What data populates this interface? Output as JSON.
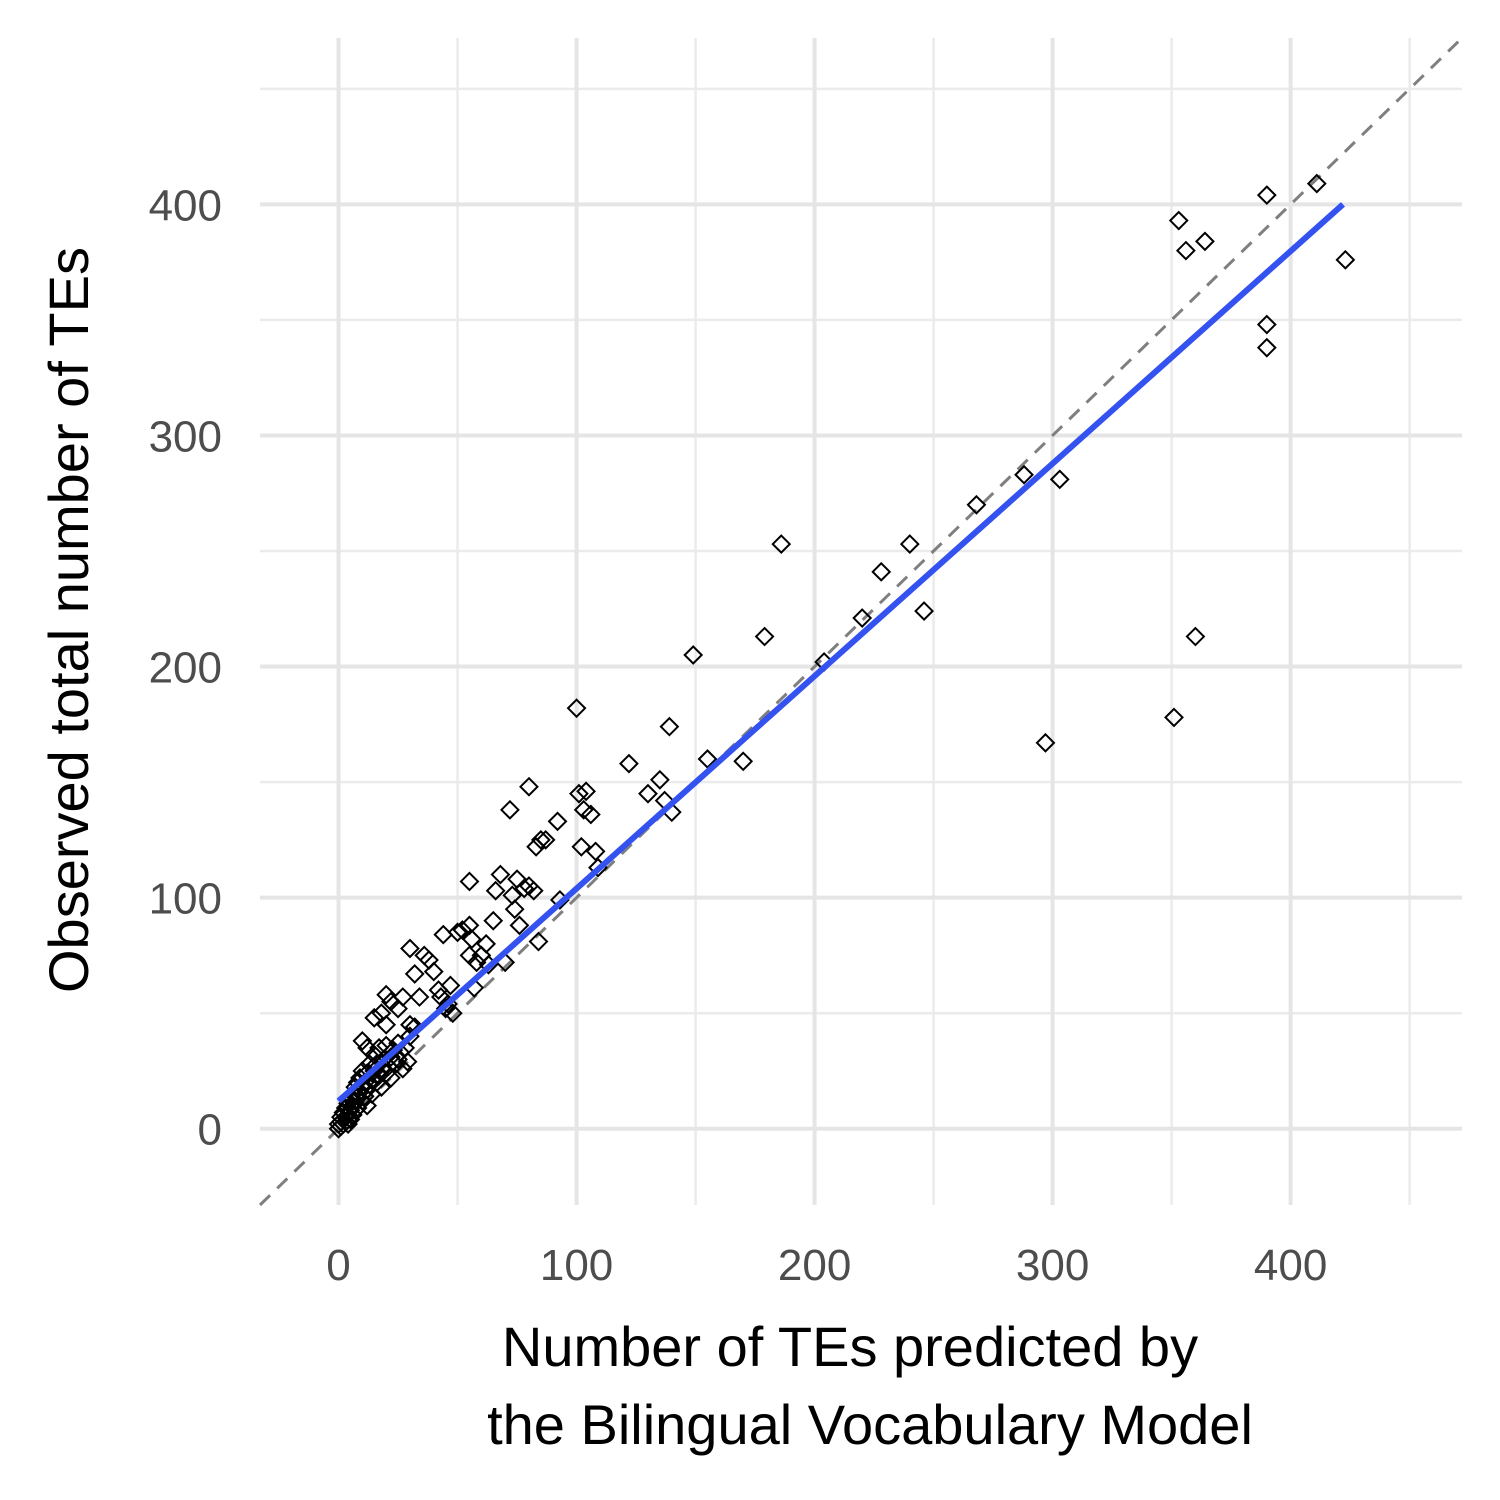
{
  "chart_data": {
    "type": "scatter",
    "xlabel_line1": "Number of TEs predicted by",
    "xlabel_line2": "the Bilingual Vocabulary Model",
    "ylabel": "Observed total number of TEs",
    "xlim": [
      -33,
      472
    ],
    "ylim": [
      -33,
      472
    ],
    "x_major_ticks": [
      0,
      100,
      200,
      300,
      400
    ],
    "y_major_ticks": [
      0,
      100,
      200,
      300,
      400
    ],
    "x_minor_ticks": [
      50,
      150,
      250,
      350,
      450
    ],
    "y_minor_ticks": [
      50,
      150,
      250,
      350,
      450
    ],
    "x_tick_labels": [
      "0",
      "100",
      "200",
      "300",
      "400"
    ],
    "y_tick_labels": [
      "0",
      "100",
      "200",
      "300",
      "400"
    ],
    "grid": true,
    "reference_line": {
      "style": "dashed",
      "color": "#7f7f7f",
      "slope": 1,
      "intercept": 0
    },
    "fit_line": {
      "color": "#3452f0",
      "x": [
        0,
        422
      ],
      "y": [
        12,
        400
      ]
    },
    "marker": "open-diamond",
    "points": [
      [
        0,
        0
      ],
      [
        0,
        2
      ],
      [
        1,
        1
      ],
      [
        1,
        3
      ],
      [
        1,
        5
      ],
      [
        2,
        4
      ],
      [
        2,
        2
      ],
      [
        2,
        7
      ],
      [
        3,
        5
      ],
      [
        3,
        9
      ],
      [
        3,
        3
      ],
      [
        4,
        6
      ],
      [
        4,
        11
      ],
      [
        4,
        2
      ],
      [
        5,
        8
      ],
      [
        5,
        13
      ],
      [
        5,
        4
      ],
      [
        6,
        10
      ],
      [
        6,
        15
      ],
      [
        6,
        6
      ],
      [
        7,
        12
      ],
      [
        7,
        18
      ],
      [
        7,
        8
      ],
      [
        8,
        14
      ],
      [
        8,
        20
      ],
      [
        8,
        9
      ],
      [
        9,
        16
      ],
      [
        9,
        22
      ],
      [
        10,
        12
      ],
      [
        10,
        18
      ],
      [
        10,
        25
      ],
      [
        11,
        14
      ],
      [
        11,
        20
      ],
      [
        12,
        17
      ],
      [
        12,
        24
      ],
      [
        12,
        10
      ],
      [
        13,
        19
      ],
      [
        13,
        28
      ],
      [
        14,
        21
      ],
      [
        14,
        15
      ],
      [
        15,
        25
      ],
      [
        15,
        32
      ],
      [
        16,
        20
      ],
      [
        16,
        28
      ],
      [
        17,
        23
      ],
      [
        17,
        35
      ],
      [
        18,
        26
      ],
      [
        18,
        18
      ],
      [
        19,
        30
      ],
      [
        20,
        24
      ],
      [
        20,
        36
      ],
      [
        21,
        27
      ],
      [
        22,
        31
      ],
      [
        22,
        22
      ],
      [
        23,
        34
      ],
      [
        24,
        28
      ],
      [
        25,
        30
      ],
      [
        25,
        37
      ],
      [
        26,
        33
      ],
      [
        27,
        26
      ],
      [
        28,
        35
      ],
      [
        29,
        29
      ],
      [
        30,
        40
      ],
      [
        10,
        38
      ],
      [
        12,
        35
      ],
      [
        15,
        48
      ],
      [
        18,
        50
      ],
      [
        20,
        58
      ],
      [
        20,
        45
      ],
      [
        22,
        55
      ],
      [
        25,
        52
      ],
      [
        27,
        57
      ],
      [
        30,
        45
      ],
      [
        32,
        44
      ],
      [
        34,
        57
      ],
      [
        30,
        78
      ],
      [
        32,
        67
      ],
      [
        36,
        75
      ],
      [
        38,
        73
      ],
      [
        40,
        68
      ],
      [
        42,
        60
      ],
      [
        43,
        57
      ],
      [
        44,
        84
      ],
      [
        45,
        52
      ],
      [
        46,
        54
      ],
      [
        47,
        62
      ],
      [
        48,
        50
      ],
      [
        50,
        85
      ],
      [
        52,
        86
      ],
      [
        55,
        88
      ],
      [
        55,
        75
      ],
      [
        56,
        82
      ],
      [
        57,
        61
      ],
      [
        58,
        72
      ],
      [
        60,
        75
      ],
      [
        62,
        80
      ],
      [
        55,
        107
      ],
      [
        63,
        71
      ],
      [
        65,
        90
      ],
      [
        66,
        103
      ],
      [
        68,
        110
      ],
      [
        70,
        72
      ],
      [
        72,
        138
      ],
      [
        73,
        101
      ],
      [
        74,
        95
      ],
      [
        75,
        108
      ],
      [
        76,
        88
      ],
      [
        78,
        104
      ],
      [
        80,
        105
      ],
      [
        80,
        148
      ],
      [
        82,
        103
      ],
      [
        83,
        122
      ],
      [
        84,
        81
      ],
      [
        85,
        125
      ],
      [
        87,
        125
      ],
      [
        92,
        133
      ],
      [
        93,
        99
      ],
      [
        100,
        182
      ],
      [
        101,
        145
      ],
      [
        102,
        122
      ],
      [
        103,
        138
      ],
      [
        104,
        146
      ],
      [
        106,
        136
      ],
      [
        108,
        120
      ],
      [
        109,
        113
      ],
      [
        122,
        158
      ],
      [
        130,
        145
      ],
      [
        135,
        151
      ],
      [
        137,
        142
      ],
      [
        139,
        174
      ],
      [
        140,
        137
      ],
      [
        149,
        205
      ],
      [
        155,
        160
      ],
      [
        170,
        159
      ],
      [
        179,
        213
      ],
      [
        186,
        253
      ],
      [
        204,
        202
      ],
      [
        220,
        221
      ],
      [
        228,
        241
      ],
      [
        240,
        253
      ],
      [
        246,
        224
      ],
      [
        268,
        270
      ],
      [
        288,
        283
      ],
      [
        297,
        167
      ],
      [
        303,
        281
      ],
      [
        351,
        178
      ],
      [
        353,
        393
      ],
      [
        356,
        380
      ],
      [
        360,
        213
      ],
      [
        364,
        384
      ],
      [
        390,
        404
      ],
      [
        390,
        348
      ],
      [
        390,
        338
      ],
      [
        411,
        409
      ],
      [
        423,
        376
      ]
    ]
  }
}
